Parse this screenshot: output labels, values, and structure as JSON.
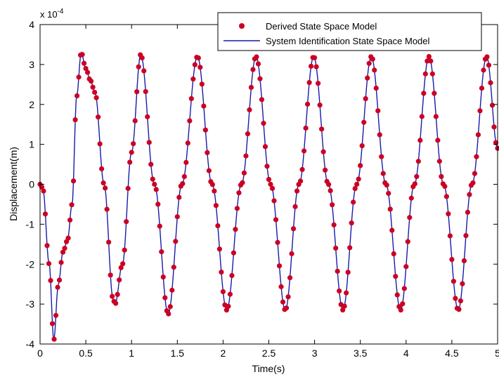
{
  "chart_data": {
    "type": "scatter",
    "xlabel": "Time(s)",
    "ylabel": "Displacement(m)",
    "xlim": [
      0,
      5
    ],
    "ylim": [
      -4,
      4
    ],
    "y_multiplier_label": "x 10",
    "y_multiplier_exponent": "-4",
    "x_ticks": [
      0,
      0.5,
      1,
      1.5,
      2,
      2.5,
      3,
      3.5,
      4,
      4.5,
      5
    ],
    "x_tick_labels": [
      "0",
      "0.5",
      "1",
      "1.5",
      "2",
      "2.5",
      "3",
      "3.5",
      "4",
      "4.5",
      "5"
    ],
    "y_ticks": [
      -4,
      -3,
      -2,
      -1,
      0,
      1,
      2,
      3,
      4
    ],
    "y_tick_labels": [
      "-4",
      "-3",
      "-2",
      "-1",
      "0",
      "1",
      "2",
      "3",
      "4"
    ],
    "grid": false,
    "legend_position": "top-right",
    "series": [
      {
        "name": "Derived State Space Model",
        "style": "markers",
        "color": "#cc0022",
        "keypoints": [
          [
            0,
            0
          ],
          [
            0.03,
            -0.1
          ],
          [
            0.1,
            -2
          ],
          [
            0.15,
            -3.9
          ],
          [
            0.2,
            -2.5
          ],
          [
            0.25,
            -1.7
          ],
          [
            0.3,
            -1.4
          ],
          [
            0.35,
            -0.5
          ],
          [
            0.4,
            2.2
          ],
          [
            0.45,
            3.3
          ],
          [
            0.5,
            2.9
          ],
          [
            0.55,
            2.6
          ],
          [
            0.6,
            2.3
          ],
          [
            0.7,
            0
          ],
          [
            0.8,
            -2.9
          ],
          [
            0.82,
            -3.0
          ],
          [
            0.9,
            -2.0
          ],
          [
            1.0,
            0.8
          ],
          [
            1.1,
            3.25
          ],
          [
            1.25,
            0
          ],
          [
            1.4,
            -3.25
          ],
          [
            1.55,
            0
          ],
          [
            1.72,
            3.2
          ],
          [
            1.88,
            0
          ],
          [
            2.04,
            -3.15
          ],
          [
            2.2,
            0
          ],
          [
            2.36,
            3.2
          ],
          [
            2.52,
            0
          ],
          [
            2.68,
            -3.15
          ],
          [
            2.83,
            0
          ],
          [
            2.99,
            3.2
          ],
          [
            3.15,
            0
          ],
          [
            3.31,
            -3.15
          ],
          [
            3.46,
            0
          ],
          [
            3.62,
            3.2
          ],
          [
            3.78,
            0
          ],
          [
            3.94,
            -3.15
          ],
          [
            4.09,
            0
          ],
          [
            4.25,
            3.2
          ],
          [
            4.41,
            0
          ],
          [
            4.57,
            -3.15
          ],
          [
            4.72,
            0
          ],
          [
            4.88,
            3.2
          ],
          [
            5.0,
            0.9
          ]
        ]
      },
      {
        "name": "System Identification State Space Model",
        "style": "line",
        "color": "#1a1aaa"
      }
    ]
  }
}
